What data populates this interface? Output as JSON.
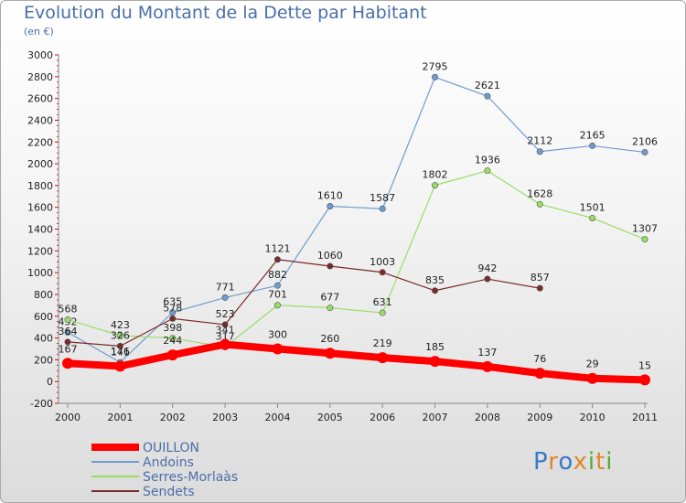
{
  "title": "Evolution du Montant de la Dette par Habitant",
  "subtitle": "(en €)",
  "logo_text": "Proxiti",
  "chart_data": {
    "type": "line",
    "categories": [
      "2000",
      "2001",
      "2002",
      "2003",
      "2004",
      "2005",
      "2006",
      "2007",
      "2008",
      "2009",
      "2010",
      "2011"
    ],
    "ylim": [
      -200,
      3000
    ],
    "yticks": [
      -200,
      0,
      200,
      400,
      600,
      800,
      1000,
      1200,
      1400,
      1600,
      1800,
      2000,
      2200,
      2400,
      2600,
      2800,
      3000
    ],
    "grid": false,
    "legend_position": "bottom-left",
    "series": [
      {
        "name": "OUILLON",
        "color": "#ff0000",
        "width": 8,
        "values": [
          167,
          141,
          244,
          341,
          300,
          260,
          219,
          185,
          137,
          76,
          29,
          15
        ]
      },
      {
        "name": "Andoins",
        "color": "#6c9cd0",
        "width": 1.2,
        "values": [
          452,
          176,
          635,
          771,
          882,
          1610,
          1587,
          2795,
          2621,
          2112,
          2165,
          2106
        ]
      },
      {
        "name": "Serres-Morlaàs",
        "color": "#99dd66",
        "width": 1.2,
        "values": [
          568,
          423,
          398,
          317,
          701,
          677,
          631,
          1802,
          1936,
          1628,
          1501,
          1307
        ]
      },
      {
        "name": "Sendets",
        "color": "#7a2a2a",
        "width": 1.2,
        "values": [
          364,
          326,
          578,
          523,
          1121,
          1060,
          1003,
          835,
          942,
          857,
          null,
          null
        ]
      }
    ]
  }
}
